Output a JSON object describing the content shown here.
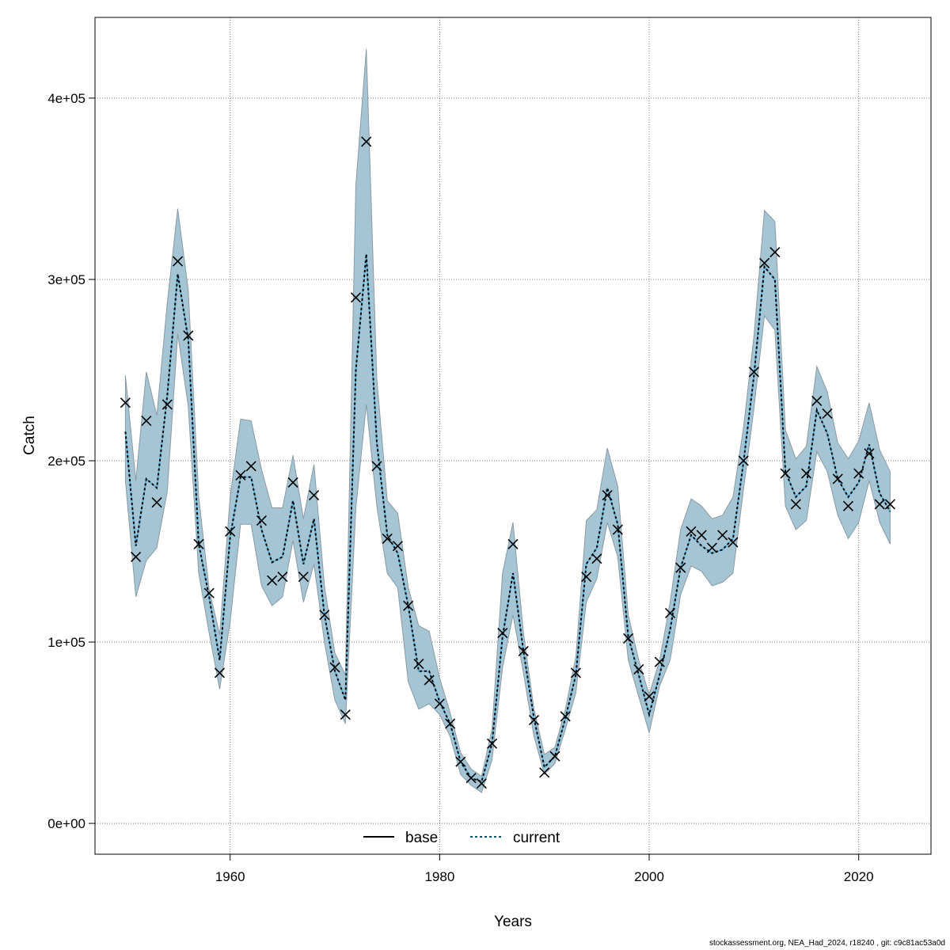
{
  "chart_data": {
    "type": "line",
    "title": "",
    "xlabel": "Years",
    "ylabel": "Catch",
    "xlim": [
      1947.1,
      2026.9
    ],
    "ylim": [
      -17000,
      444500
    ],
    "x_ticks": [
      1960,
      1980,
      2000,
      2020
    ],
    "y_ticks": [
      0,
      100000,
      200000,
      300000,
      400000
    ],
    "y_tick_labels": [
      "0e+00",
      "1e+05",
      "2e+05",
      "3e+05",
      "4e+05"
    ],
    "grid": true,
    "legend": {
      "placement": "bottom",
      "entries": [
        {
          "name": "base",
          "style": "solid",
          "color": "#000000"
        },
        {
          "name": "current",
          "style": "dotted",
          "color": "#00507a"
        }
      ]
    },
    "colors": {
      "band": "#a5c5d5",
      "band_edge": "#8a9aa3",
      "observed": "#000000",
      "current": "#000000"
    },
    "years_start": 1950,
    "years_end": 2023,
    "observed": [
      232000,
      147000,
      222000,
      177000,
      231000,
      310000,
      269000,
      154000,
      127000,
      83000,
      161000,
      192000,
      197000,
      167000,
      134000,
      136000,
      188000,
      136000,
      181000,
      115000,
      86000,
      60000,
      290000,
      376000,
      197000,
      157000,
      153000,
      120000,
      88000,
      79000,
      66000,
      55000,
      34000,
      25000,
      22000,
      44000,
      105000,
      154000,
      95000,
      57000,
      28000,
      37000,
      59000,
      83000,
      136000,
      146000,
      181000,
      162000,
      102000,
      85000,
      70000,
      89000,
      116000,
      141000,
      161000,
      159000,
      152000,
      159000,
      155000,
      200000,
      249000,
      309000,
      315000,
      193000,
      176000,
      193000,
      233000,
      226000,
      190000,
      175000,
      193000,
      204000,
      176000,
      176000
    ],
    "estimate": [
      216000,
      153000,
      190000,
      185000,
      236000,
      303000,
      267000,
      154000,
      125000,
      90000,
      158000,
      191000,
      191000,
      162000,
      144000,
      147000,
      178000,
      143000,
      168000,
      115000,
      84000,
      68000,
      250000,
      314000,
      210000,
      159000,
      149000,
      120000,
      84000,
      84000,
      67000,
      55000,
      34000,
      25000,
      23000,
      44000,
      103000,
      138000,
      95000,
      58000,
      31000,
      37000,
      58000,
      82000,
      143000,
      152000,
      185000,
      165000,
      103000,
      82000,
      60000,
      82000,
      107000,
      141000,
      159000,
      153000,
      149000,
      151000,
      157000,
      199000,
      247000,
      307000,
      300000,
      194000,
      180000,
      186000,
      228000,
      215000,
      190000,
      180000,
      188000,
      209000,
      182000,
      172000
    ],
    "upper": [
      247000,
      189000,
      249000,
      225000,
      287000,
      339000,
      294000,
      180000,
      129000,
      104000,
      180000,
      223000,
      222000,
      195000,
      174000,
      174000,
      203000,
      168000,
      198000,
      131000,
      94000,
      82000,
      352000,
      427000,
      245000,
      178000,
      171000,
      130000,
      109000,
      106000,
      80000,
      61000,
      39000,
      30000,
      26000,
      52000,
      138000,
      166000,
      105000,
      63000,
      38000,
      42000,
      63000,
      92000,
      167000,
      173000,
      207000,
      186000,
      115000,
      90000,
      71000,
      90000,
      122000,
      162000,
      179000,
      175000,
      168000,
      170000,
      180000,
      218000,
      269000,
      338000,
      332000,
      217000,
      201000,
      208000,
      252000,
      238000,
      210000,
      201000,
      211000,
      232000,
      206000,
      194000
    ],
    "lower": [
      189000,
      125000,
      145000,
      152000,
      183000,
      270000,
      230000,
      138000,
      105000,
      74000,
      111000,
      165000,
      165000,
      131000,
      120000,
      125000,
      156000,
      122000,
      143000,
      100000,
      68000,
      55000,
      174000,
      231000,
      175000,
      138000,
      130000,
      78000,
      63000,
      66000,
      60000,
      48000,
      27000,
      21000,
      17000,
      35000,
      86000,
      115000,
      83000,
      48000,
      27000,
      33000,
      52000,
      72000,
      122000,
      135000,
      166000,
      147000,
      90000,
      70000,
      50000,
      76000,
      90000,
      126000,
      142000,
      139000,
      131000,
      133000,
      138000,
      184000,
      229000,
      280000,
      272000,
      175000,
      162000,
      167000,
      205000,
      194000,
      170000,
      157000,
      166000,
      189000,
      166000,
      154000
    ]
  },
  "footer": "stockassessment.org, NEA_Had_2024, r18240 , git: c9c81ac53a0d"
}
